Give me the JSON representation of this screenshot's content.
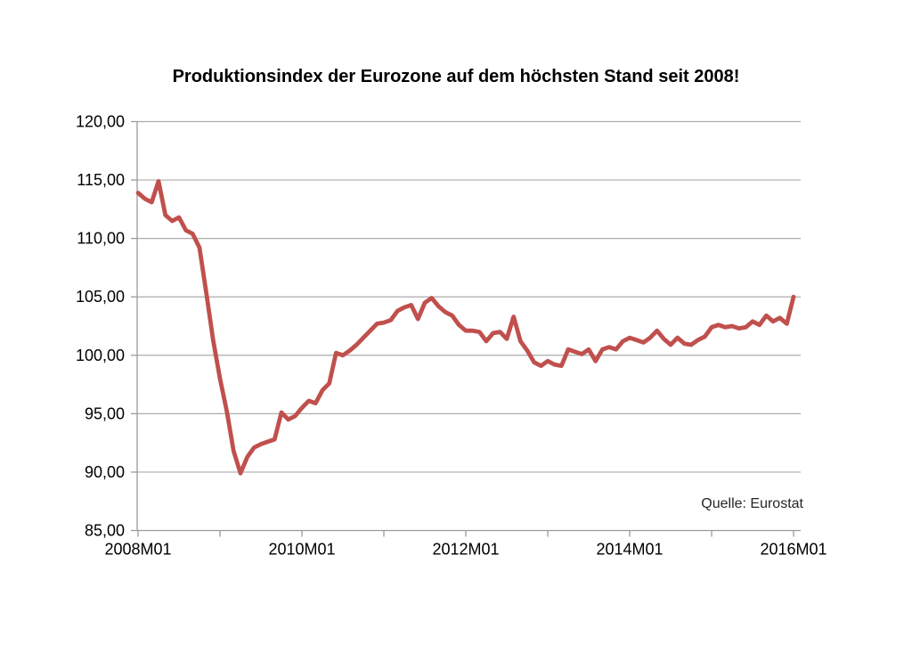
{
  "title": "Produktionsindex der Eurozone auf dem höchsten Stand seit 2008!",
  "source_note": "Quelle: Eurostat",
  "colors": {
    "line": "#C0504D",
    "gridline": "#ACACAC",
    "axis": "#9B9B9B",
    "title_text": "#000000",
    "source_text": "#262626",
    "background": "#FFFFFF"
  },
  "chart_data": {
    "type": "line",
    "title": "Produktionsindex der Eurozone auf dem höchsten Stand seit 2008!",
    "series_name": "Produktionsindex Eurozone (Industrie)",
    "x_frequency": "monthly",
    "x_start": "2008M01",
    "x_end": "2016M01",
    "x_tick_every_months": 12,
    "x_label_every_months": 24,
    "x_tick_labels": [
      "2008M01",
      "2010M01",
      "2012M01",
      "2014M01",
      "2016M01"
    ],
    "y_tick_labels": [
      "120,00",
      "115,00",
      "110,00",
      "105,00",
      "100,00",
      "95,00",
      "90,00",
      "85,00"
    ],
    "ylim": [
      85,
      120
    ],
    "y_step": 5,
    "grid": "horizontal",
    "legend": "none",
    "annotation": "Quelle: Eurostat",
    "values": [
      113.9,
      113.4,
      113.1,
      114.9,
      112.0,
      111.5,
      111.8,
      110.7,
      110.4,
      109.2,
      105.3,
      101.3,
      98.0,
      95.2,
      91.8,
      89.9,
      91.3,
      92.1,
      92.4,
      92.6,
      92.8,
      95.1,
      94.5,
      94.8,
      95.5,
      96.1,
      95.9,
      97.0,
      97.6,
      100.2,
      100.0,
      100.4,
      100.9,
      101.5,
      102.1,
      102.7,
      102.8,
      103.0,
      103.8,
      104.1,
      104.3,
      103.1,
      104.5,
      104.9,
      104.2,
      103.7,
      103.4,
      102.6,
      102.1,
      102.1,
      102.0,
      101.2,
      101.9,
      102.0,
      101.4,
      103.3,
      101.2,
      100.4,
      99.4,
      99.1,
      99.5,
      99.2,
      99.1,
      100.5,
      100.3,
      100.1,
      100.5,
      99.5,
      100.5,
      100.7,
      100.5,
      101.2,
      101.5,
      101.3,
      101.1,
      101.5,
      102.1,
      101.4,
      100.9,
      101.5,
      101.0,
      100.9,
      101.3,
      101.6,
      102.4,
      102.6,
      102.4,
      102.5,
      102.3,
      102.4,
      102.9,
      102.6,
      103.4,
      102.9,
      103.2,
      102.7,
      105.0
    ]
  }
}
